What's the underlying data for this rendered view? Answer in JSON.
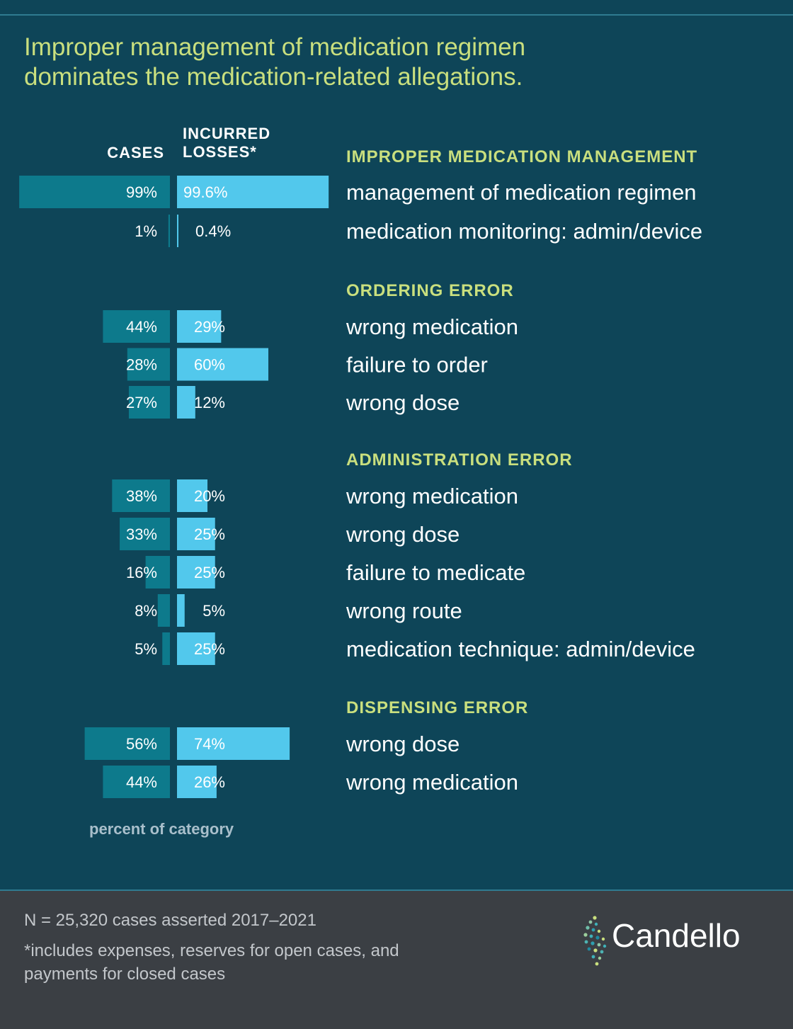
{
  "title_lines": [
    "Improper management of medication regimen",
    "dominates the medication-related allegations."
  ],
  "column_headers": {
    "cases": "CASES",
    "losses_lines": [
      "INCURRED",
      "LOSSES*"
    ]
  },
  "axis_note": "percent of category",
  "footnotes": {
    "n": "N = 25,320 cases asserted 2017–2021",
    "asterisk": "*includes expenses, reserves for open cases, and payments for closed cases"
  },
  "logo_text": "Candello",
  "colors": {
    "background": "#0e4558",
    "cases_bar": "#0d7a8c",
    "losses_bar": "#52c8ec",
    "accent": "#c9df7e",
    "footer": "#3b3f44"
  },
  "chart_data": {
    "type": "bar",
    "orientation": "horizontal-butterfly",
    "series": [
      {
        "name": "CASES",
        "color": "#0d7a8c"
      },
      {
        "name": "INCURRED LOSSES*",
        "color": "#52c8ec"
      }
    ],
    "groups": [
      {
        "title": "IMPROPER MEDICATION MANAGEMENT",
        "rows": [
          {
            "label": "management of medication regimen",
            "cases": 99,
            "cases_label": "99%",
            "losses": 99.6,
            "losses_label": "99.6%"
          },
          {
            "label": "medication monitoring: admin/device",
            "cases": 1,
            "cases_label": "1%",
            "losses": 0.4,
            "losses_label": "0.4%"
          }
        ]
      },
      {
        "title": "ORDERING ERROR",
        "rows": [
          {
            "label": "wrong medication",
            "cases": 44,
            "cases_label": "44%",
            "losses": 29,
            "losses_label": "29%"
          },
          {
            "label": "failure to order",
            "cases": 28,
            "cases_label": "28%",
            "losses": 60,
            "losses_label": "60%"
          },
          {
            "label": "wrong dose",
            "cases": 27,
            "cases_label": "27%",
            "losses": 12,
            "losses_label": "12%"
          }
        ]
      },
      {
        "title": "ADMINISTRATION ERROR",
        "rows": [
          {
            "label": "wrong medication",
            "cases": 38,
            "cases_label": "38%",
            "losses": 20,
            "losses_label": "20%"
          },
          {
            "label": "wrong dose",
            "cases": 33,
            "cases_label": "33%",
            "losses": 25,
            "losses_label": "25%"
          },
          {
            "label": "failure to medicate",
            "cases": 16,
            "cases_label": "16%",
            "losses": 25,
            "losses_label": "25%"
          },
          {
            "label": "wrong route",
            "cases": 8,
            "cases_label": "8%",
            "losses": 5,
            "losses_label": "5%"
          },
          {
            "label": "medication technique: admin/device",
            "cases": 5,
            "cases_label": "5%",
            "losses": 25,
            "losses_label": "25%"
          }
        ]
      },
      {
        "title": "DISPENSING ERROR",
        "rows": [
          {
            "label": "wrong dose",
            "cases": 56,
            "cases_label": "56%",
            "losses": 74,
            "losses_label": "74%"
          },
          {
            "label": "wrong medication",
            "cases": 44,
            "cases_label": "44%",
            "losses": 26,
            "losses_label": "26%"
          }
        ]
      }
    ]
  }
}
